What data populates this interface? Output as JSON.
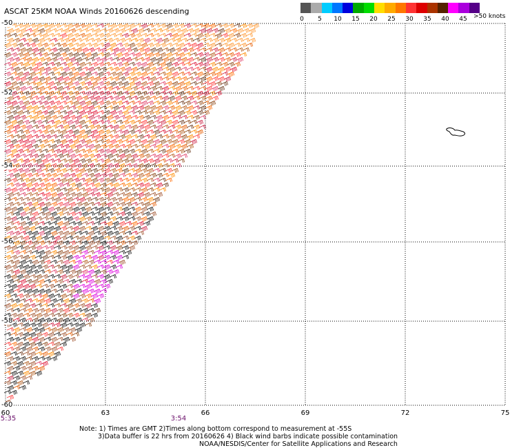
{
  "title": "ASCAT 25KM NOAA Winds 20160626 descending",
  "colorbar": {
    "colors": [
      "#555555",
      "#aaaaaa",
      "#00ccff",
      "#0077ff",
      "#0000dd",
      "#00aa00",
      "#00dd00",
      "#ffdd00",
      "#ffaa00",
      "#ff7700",
      "#ff3333",
      "#dd0000",
      "#aa3300",
      "#552200",
      "#ff00ff",
      "#aa00dd",
      "#550088"
    ],
    "ticks": [
      "0",
      "5",
      "10",
      "15",
      "20",
      "25",
      "30",
      "35",
      "40",
      "45"
    ],
    "units": ">50 knots"
  },
  "axes": {
    "lon_labels": [
      "60",
      "63",
      "66",
      "69",
      "72",
      "75"
    ],
    "lat_labels": [
      "-50",
      "-52",
      "-54",
      "-56",
      "-58",
      "-60"
    ]
  },
  "times": [
    "5:35",
    "3:54"
  ],
  "notes": [
    "Note: 1) Times are GMT 2)Times along bottom correspond to measurement at -55S",
    "3)Data buffer is 22 hrs from 20160626 4) Black wind barbs indicate possible contamination",
    "NOAA/NESDIS/Center for Satellite Applications and Research"
  ]
}
